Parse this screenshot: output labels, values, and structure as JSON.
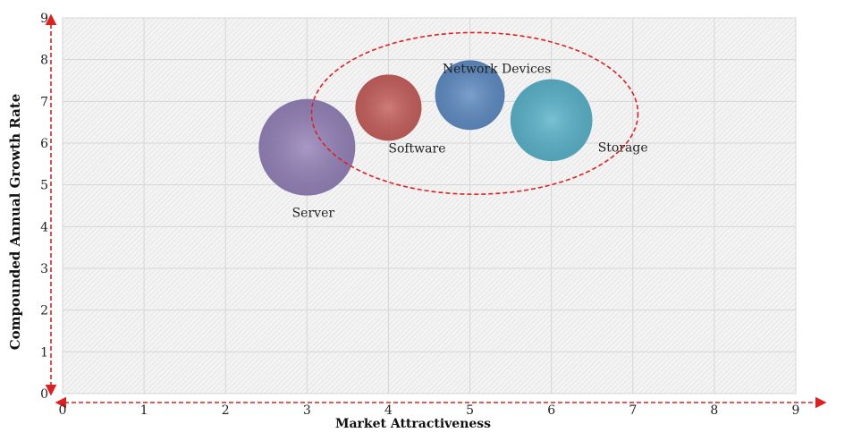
{
  "chart_data": {
    "type": "bubble",
    "xlabel": "Market Attractiveness",
    "ylabel": "Compounded  Annual  Growth Rate",
    "xlim": [
      0,
      9
    ],
    "ylim": [
      0,
      9
    ],
    "x_ticks": [
      0,
      1,
      2,
      3,
      4,
      5,
      6,
      7,
      8,
      9
    ],
    "y_ticks": [
      0,
      1,
      2,
      3,
      4,
      5,
      6,
      7,
      8,
      9
    ],
    "grid": true,
    "points": [
      {
        "label": "Server",
        "x": 3.0,
        "y": 5.9,
        "size": 1.0,
        "color": "#8b77b3"
      },
      {
        "label": "Software",
        "x": 4.0,
        "y": 6.85,
        "size": 0.47,
        "color": "#c0504d"
      },
      {
        "label": "Network Devices",
        "x": 5.0,
        "y": 7.15,
        "size": 0.52,
        "color": "#4f81bd"
      },
      {
        "label": "Storage",
        "x": 6.0,
        "y": 6.55,
        "size": 0.72,
        "color": "#4bacc6"
      }
    ],
    "highlight": {
      "shape": "ellipse",
      "style": "dashed",
      "color": "#e02020",
      "encloses": [
        "Software",
        "Network Devices",
        "Storage"
      ]
    },
    "axis_arrow_color": "#e02020"
  }
}
